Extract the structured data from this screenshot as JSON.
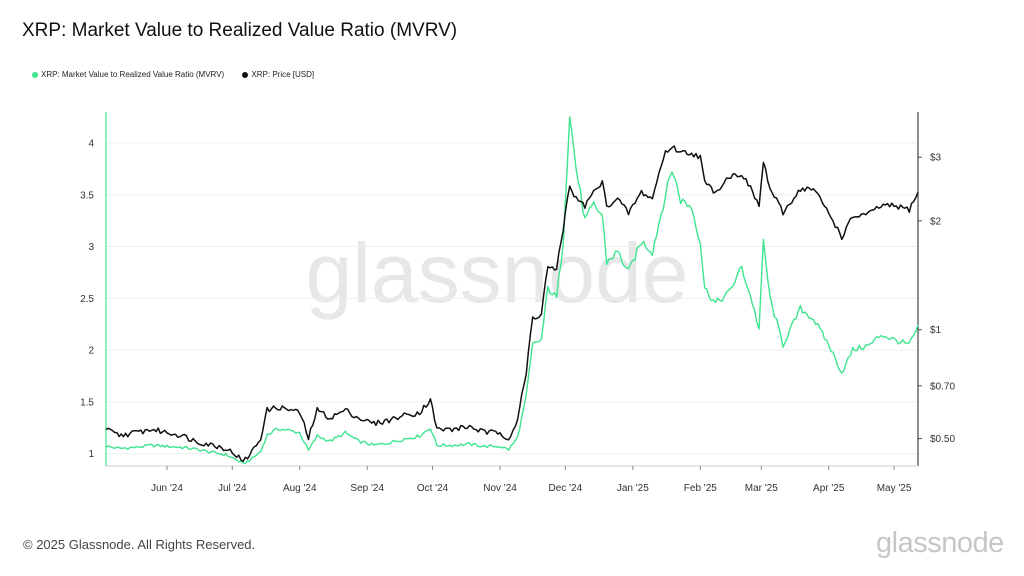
{
  "header": {
    "title": "XRP: Market Value to Realized Value Ratio (MVRV)"
  },
  "legend": [
    {
      "label": "XRP: Market Value to Realized Value Ratio (MVRV)",
      "color": "#3ee58f"
    },
    {
      "label": "XRP: Price [USD]",
      "color": "#111111"
    }
  ],
  "watermark": "glassnode",
  "footer": {
    "copyright": "© 2025 Glassnode. All Rights Reserved.",
    "brand": "glassnode"
  },
  "chart_data": {
    "type": "line",
    "title": "XRP: Market Value to Realized Value Ratio (MVRV)",
    "x_ticks": [
      "Jun '24",
      "Jul '24",
      "Aug '24",
      "Sep '24",
      "Oct '24",
      "Nov '24",
      "Dec '24",
      "Jan '25",
      "Feb '25",
      "Mar '25",
      "Apr '25",
      "May '25"
    ],
    "y_left": {
      "ticks": [
        1,
        1.5,
        2,
        2.5,
        3,
        3.5,
        4
      ],
      "ylim": [
        0.88,
        4.3
      ],
      "scale": "linear"
    },
    "y_right": {
      "tick_labels": [
        "$0.50",
        "$0.70",
        "$1",
        "$2",
        "$3"
      ],
      "tick_values": [
        0.5,
        0.7,
        1,
        2,
        3
      ],
      "ylim": [
        0.42,
        4.0
      ],
      "scale": "log"
    },
    "x_range": [
      "2024-05-04",
      "2025-05-12"
    ],
    "grid": true,
    "legend_position": "top-left",
    "series": [
      {
        "name": "XRP: Market Value to Realized Value Ratio (MVRV)",
        "axis": "left",
        "color": "#3ee58f",
        "points": [
          [
            "2024-05-04",
            1.07
          ],
          [
            "2024-05-10",
            1.05
          ],
          [
            "2024-05-18",
            1.06
          ],
          [
            "2024-05-25",
            1.08
          ],
          [
            "2024-06-01",
            1.07
          ],
          [
            "2024-06-08",
            1.06
          ],
          [
            "2024-06-15",
            1.04
          ],
          [
            "2024-06-22",
            1.01
          ],
          [
            "2024-06-28",
            0.99
          ],
          [
            "2024-07-03",
            0.94
          ],
          [
            "2024-07-06",
            0.9
          ],
          [
            "2024-07-10",
            0.95
          ],
          [
            "2024-07-14",
            1.02
          ],
          [
            "2024-07-17",
            1.18
          ],
          [
            "2024-07-22",
            1.24
          ],
          [
            "2024-07-28",
            1.22
          ],
          [
            "2024-08-01",
            1.2
          ],
          [
            "2024-08-05",
            1.03
          ],
          [
            "2024-08-09",
            1.17
          ],
          [
            "2024-08-15",
            1.12
          ],
          [
            "2024-08-22",
            1.2
          ],
          [
            "2024-08-28",
            1.12
          ],
          [
            "2024-09-04",
            1.08
          ],
          [
            "2024-09-10",
            1.1
          ],
          [
            "2024-09-18",
            1.14
          ],
          [
            "2024-09-25",
            1.17
          ],
          [
            "2024-09-30",
            1.25
          ],
          [
            "2024-10-03",
            1.08
          ],
          [
            "2024-10-10",
            1.08
          ],
          [
            "2024-10-18",
            1.09
          ],
          [
            "2024-10-25",
            1.07
          ],
          [
            "2024-11-01",
            1.07
          ],
          [
            "2024-11-05",
            1.04
          ],
          [
            "2024-11-09",
            1.15
          ],
          [
            "2024-11-13",
            1.55
          ],
          [
            "2024-11-16",
            2.05
          ],
          [
            "2024-11-20",
            2.1
          ],
          [
            "2024-11-23",
            2.6
          ],
          [
            "2024-11-27",
            2.5
          ],
          [
            "2024-11-30",
            3.05
          ],
          [
            "2024-12-03",
            4.28
          ],
          [
            "2024-12-06",
            3.75
          ],
          [
            "2024-12-10",
            3.25
          ],
          [
            "2024-12-14",
            3.4
          ],
          [
            "2024-12-18",
            3.3
          ],
          [
            "2024-12-20",
            2.85
          ],
          [
            "2024-12-25",
            2.95
          ],
          [
            "2024-12-30",
            2.75
          ],
          [
            "2025-01-05",
            3.05
          ],
          [
            "2025-01-10",
            2.95
          ],
          [
            "2025-01-16",
            3.5
          ],
          [
            "2025-01-19",
            3.75
          ],
          [
            "2025-01-23",
            3.45
          ],
          [
            "2025-01-28",
            3.38
          ],
          [
            "2025-02-01",
            3.05
          ],
          [
            "2025-02-03",
            2.6
          ],
          [
            "2025-02-08",
            2.45
          ],
          [
            "2025-02-14",
            2.55
          ],
          [
            "2025-02-20",
            2.8
          ],
          [
            "2025-02-25",
            2.45
          ],
          [
            "2025-02-28",
            2.2
          ],
          [
            "2025-03-02",
            3.05
          ],
          [
            "2025-03-05",
            2.5
          ],
          [
            "2025-03-11",
            2.05
          ],
          [
            "2025-03-19",
            2.4
          ],
          [
            "2025-03-25",
            2.3
          ],
          [
            "2025-04-01",
            2.05
          ],
          [
            "2025-04-07",
            1.78
          ],
          [
            "2025-04-12",
            2.0
          ],
          [
            "2025-04-20",
            2.05
          ],
          [
            "2025-04-25",
            2.15
          ],
          [
            "2025-05-01",
            2.1
          ],
          [
            "2025-05-08",
            2.05
          ],
          [
            "2025-05-12",
            2.22
          ]
        ]
      },
      {
        "name": "XRP: Price [USD]",
        "axis": "right",
        "color": "#111111",
        "points": [
          [
            "2024-05-04",
            0.53
          ],
          [
            "2024-05-10",
            0.51
          ],
          [
            "2024-05-18",
            0.52
          ],
          [
            "2024-05-25",
            0.53
          ],
          [
            "2024-06-01",
            0.52
          ],
          [
            "2024-06-08",
            0.51
          ],
          [
            "2024-06-15",
            0.49
          ],
          [
            "2024-06-22",
            0.48
          ],
          [
            "2024-06-28",
            0.47
          ],
          [
            "2024-07-03",
            0.45
          ],
          [
            "2024-07-06",
            0.43
          ],
          [
            "2024-07-10",
            0.46
          ],
          [
            "2024-07-14",
            0.5
          ],
          [
            "2024-07-17",
            0.6
          ],
          [
            "2024-07-22",
            0.61
          ],
          [
            "2024-07-28",
            0.6
          ],
          [
            "2024-08-01",
            0.59
          ],
          [
            "2024-08-05",
            0.5
          ],
          [
            "2024-08-09",
            0.6
          ],
          [
            "2024-08-15",
            0.57
          ],
          [
            "2024-08-22",
            0.6
          ],
          [
            "2024-08-28",
            0.57
          ],
          [
            "2024-09-04",
            0.55
          ],
          [
            "2024-09-10",
            0.56
          ],
          [
            "2024-09-18",
            0.58
          ],
          [
            "2024-09-25",
            0.59
          ],
          [
            "2024-09-30",
            0.64
          ],
          [
            "2024-10-03",
            0.53
          ],
          [
            "2024-10-10",
            0.53
          ],
          [
            "2024-10-18",
            0.54
          ],
          [
            "2024-10-25",
            0.52
          ],
          [
            "2024-11-01",
            0.52
          ],
          [
            "2024-11-05",
            0.5
          ],
          [
            "2024-11-09",
            0.56
          ],
          [
            "2024-11-13",
            0.75
          ],
          [
            "2024-11-16",
            1.08
          ],
          [
            "2024-11-20",
            1.1
          ],
          [
            "2024-11-23",
            1.5
          ],
          [
            "2024-11-27",
            1.45
          ],
          [
            "2024-11-30",
            1.9
          ],
          [
            "2024-12-03",
            2.5
          ],
          [
            "2024-12-06",
            2.3
          ],
          [
            "2024-12-10",
            2.2
          ],
          [
            "2024-12-14",
            2.4
          ],
          [
            "2024-12-18",
            2.55
          ],
          [
            "2024-12-20",
            2.2
          ],
          [
            "2024-12-25",
            2.3
          ],
          [
            "2024-12-30",
            2.1
          ],
          [
            "2025-01-05",
            2.4
          ],
          [
            "2025-01-10",
            2.3
          ],
          [
            "2025-01-16",
            3.1
          ],
          [
            "2025-01-19",
            3.2
          ],
          [
            "2025-01-23",
            3.1
          ],
          [
            "2025-01-28",
            3.08
          ],
          [
            "2025-02-01",
            3.0
          ],
          [
            "2025-02-03",
            2.55
          ],
          [
            "2025-02-08",
            2.4
          ],
          [
            "2025-02-14",
            2.65
          ],
          [
            "2025-02-20",
            2.7
          ],
          [
            "2025-02-25",
            2.4
          ],
          [
            "2025-02-28",
            2.2
          ],
          [
            "2025-03-02",
            2.9
          ],
          [
            "2025-03-05",
            2.45
          ],
          [
            "2025-03-11",
            2.1
          ],
          [
            "2025-03-19",
            2.45
          ],
          [
            "2025-03-25",
            2.45
          ],
          [
            "2025-04-01",
            2.1
          ],
          [
            "2025-04-07",
            1.8
          ],
          [
            "2025-04-12",
            2.05
          ],
          [
            "2025-04-20",
            2.1
          ],
          [
            "2025-04-25",
            2.2
          ],
          [
            "2025-05-01",
            2.2
          ],
          [
            "2025-05-08",
            2.15
          ],
          [
            "2025-05-12",
            2.4
          ]
        ]
      }
    ]
  }
}
